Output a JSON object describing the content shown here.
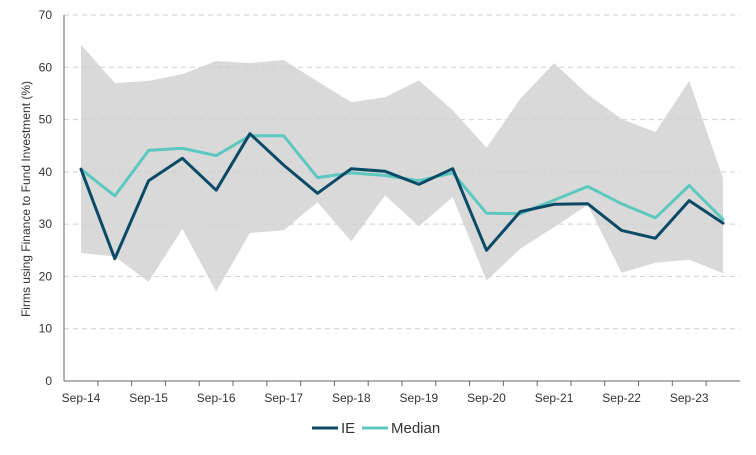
{
  "chart_data": {
    "type": "line",
    "title": "",
    "xlabel": "",
    "ylabel": "Firms using Finance to Fund Investment (%)",
    "ylim": [
      0,
      70
    ],
    "yticks": [
      0,
      10,
      20,
      30,
      40,
      50,
      60,
      70
    ],
    "x": [
      "Sep-14",
      "Mar-15",
      "Sep-15",
      "Mar-16",
      "Sep-16",
      "Mar-17",
      "Sep-17",
      "Mar-18",
      "Sep-18",
      "Mar-19",
      "Sep-19",
      "Mar-20",
      "Sep-20",
      "Mar-21",
      "Sep-21",
      "Mar-22",
      "Sep-22",
      "Mar-23",
      "Sep-23",
      "Mar-24"
    ],
    "xtick_labels": [
      "Sep-14",
      "Sep-15",
      "Sep-16",
      "Sep-17",
      "Sep-18",
      "Sep-19",
      "Sep-20",
      "Sep-21",
      "Sep-22",
      "Sep-23"
    ],
    "grid": "horizontal dashed",
    "legend_position": "bottom-center",
    "band": {
      "upper": [
        64.3,
        57.0,
        57.4,
        58.7,
        61.2,
        60.8,
        61.4,
        57.3,
        53.3,
        54.3,
        57.5,
        51.8,
        44.6,
        54.0,
        60.8,
        54.8,
        50.1,
        47.6,
        57.4,
        38.8
      ],
      "lower": [
        24.5,
        23.8,
        19.0,
        29.1,
        17.1,
        28.3,
        28.8,
        34.2,
        26.7,
        35.5,
        29.6,
        35.2,
        19.2,
        25.3,
        29.4,
        33.7,
        20.7,
        22.6,
        23.2,
        20.6
      ],
      "color": "#d9d9d9"
    },
    "series": [
      {
        "name": "IE",
        "color": "#0b4a66",
        "values": [
          40.5,
          23.4,
          38.3,
          42.6,
          36.5,
          47.3,
          41.3,
          35.9,
          40.6,
          40.1,
          37.6,
          40.6,
          25.0,
          32.4,
          33.8,
          33.9,
          28.8,
          27.3,
          34.5,
          30.2
        ]
      },
      {
        "name": "Median",
        "color": "#5cc8c0",
        "values": [
          40.5,
          35.4,
          44.1,
          44.5,
          43.1,
          46.9,
          46.9,
          38.9,
          39.8,
          39.3,
          38.3,
          39.8,
          32.1,
          32.0,
          34.6,
          37.2,
          33.9,
          31.2,
          37.4,
          30.9
        ]
      }
    ]
  }
}
